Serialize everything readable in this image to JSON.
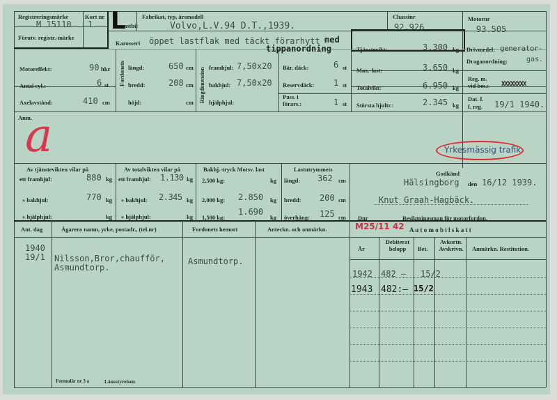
{
  "header": {
    "reg_label": "Registreringsmärke",
    "reg_value": "M 15110",
    "kort_label": "Kort nr",
    "kort_value": "1",
    "forutv_label": "Förutv. registr.-märke",
    "type_letter": "L",
    "type_label": "astbil",
    "fabrikat_label": "Fabrikat, typ, årsmodell",
    "fabrikat_value": "Volvo,L.V.94 D.T.,1939.",
    "chassi_label": "Chassinr",
    "chassi_value": "92.926",
    "motor_label": "Motornr",
    "motor_value": "93.505",
    "karosseri_label": "Karosseri",
    "karosseri_value": "öppet lastflak med täckt förarhytt",
    "karosseri_value2": "med",
    "karosseri_value3": "tippanordning"
  },
  "specs": {
    "motoreffekt_label": "Motoreffekt:",
    "motoreffekt": "90",
    "hkr": "hkr",
    "cyl_label": "Antal cyl.:",
    "cyl": "6",
    "st": "st",
    "axel_label": "Axelavstånd:",
    "axel": "410",
    "cm": "cm",
    "fordonets": "Fordonets",
    "langd_label": "längd:",
    "langd": "650",
    "bredd_label": "bredd:",
    "bredd": "208",
    "hojd_label": "höjd:",
    "ring": "Ringdimension",
    "fram_label": "framhjul:",
    "fram": "7,50x20",
    "bak_label": "bakhjul:",
    "bak": "7,50x20",
    "hjalp_label": "hjälphjul:",
    "bar_label": "Bär. däck:",
    "bar": "6",
    "reserv_label": "Reservdäck:",
    "reserv": "1",
    "pass_label": "Pass. i",
    "pass_label2": "förars.:",
    "pass": "1",
    "tjanst_label": "Tjänstevikt:",
    "tjanst": "3.300",
    "kg": "kg",
    "max_label": "Max.-last:",
    "max": "3.650",
    "total_label": "Totalvikt:",
    "total": "6.950",
    "hjultr_label": "Största hjultr.:",
    "hjultr": "2.345",
    "driv_label": "Drivmedel:",
    "driv": "generator-",
    "drag_label": "Draganordning:",
    "driv2": "gas.",
    "regm_label": "Reg. m.",
    "vidbes_label": "vid bes.:",
    "vidbes": "XXXXXXXX",
    "dat_label": "Dat. f.",
    "freg_label": "f. reg.",
    "dat": "19/1 1940."
  },
  "anm": {
    "label": "Anm.",
    "stamp": "Yrkesmässig trafik",
    "mark": "a"
  },
  "weights": {
    "tj_head": "Av tjänstevikten vilar på",
    "tj_fram_label": "ett framhjul:",
    "tj_fram": "880",
    "tj_bak_label": "» bakhjul:",
    "tj_bak": "770",
    "tj_hjalp_label": "» hjälphjul:",
    "tot_head": "Av totalvikten vilar på",
    "tot_fram_label": "ett framhjul:",
    "tot_fram": "1.130",
    "tot_bak_label": "» bakhjul:",
    "tot_bak": "2.345",
    "tot_hjalp_label": "» hjälphjul:",
    "bakhj_head": "Bakhj.-tryck Motsv. last",
    "p2500": "2,500 kg:",
    "p2000": "2,000 kg:",
    "v2000": "2.850",
    "p1500": "1,500 kg:",
    "v1500": "1.690",
    "last_head": "Lastutrymmets",
    "l_langd_label": "längd:",
    "l_langd": "362",
    "l_bredd_label": "bredd:",
    "l_bredd": "200",
    "l_over_label": "överhäng:",
    "l_over": "125",
    "godkand_label": "Godkänd",
    "place": "Hälsingborg",
    "den": "den",
    "date": "16/12 1939.",
    "inspector": "Knut Graah-Hagbäck.",
    "dnr": "Dnr",
    "besikt": "Besiktningsman för motorfordon."
  },
  "table": {
    "col_dag": "Ant. dag",
    "col_agare": "Ägarens namn, yrke, postadr., (tel.nr)",
    "col_hemort": "Fordonets hemort",
    "col_anteckn": "Anteckn. och anmärkn.",
    "tax_stamp": "M25/11 42",
    "tax_title": "A u t o m o b i l s k a t t",
    "tax_cols": [
      "År",
      "Debiterat belopp",
      "Bet.",
      "Avkortn. Avskrivn.",
      "Anmärkn. Restitution."
    ],
    "rows": [
      {
        "year": "1940",
        "date": "19/1",
        "owner1": "Nilsson,Bror,chaufför,",
        "owner2": "Asmundtorp.",
        "hemort": "Asmundtorp."
      }
    ],
    "tax_rows": [
      {
        "year": "1942",
        "amount": "482 —",
        "bet": "15/2"
      },
      {
        "year": "1943",
        "amount": "482:—",
        "bet": "15/2"
      }
    ]
  },
  "footer": {
    "form": "Formulär nr 3 a",
    "issuer": "Länsstyrelsen"
  }
}
